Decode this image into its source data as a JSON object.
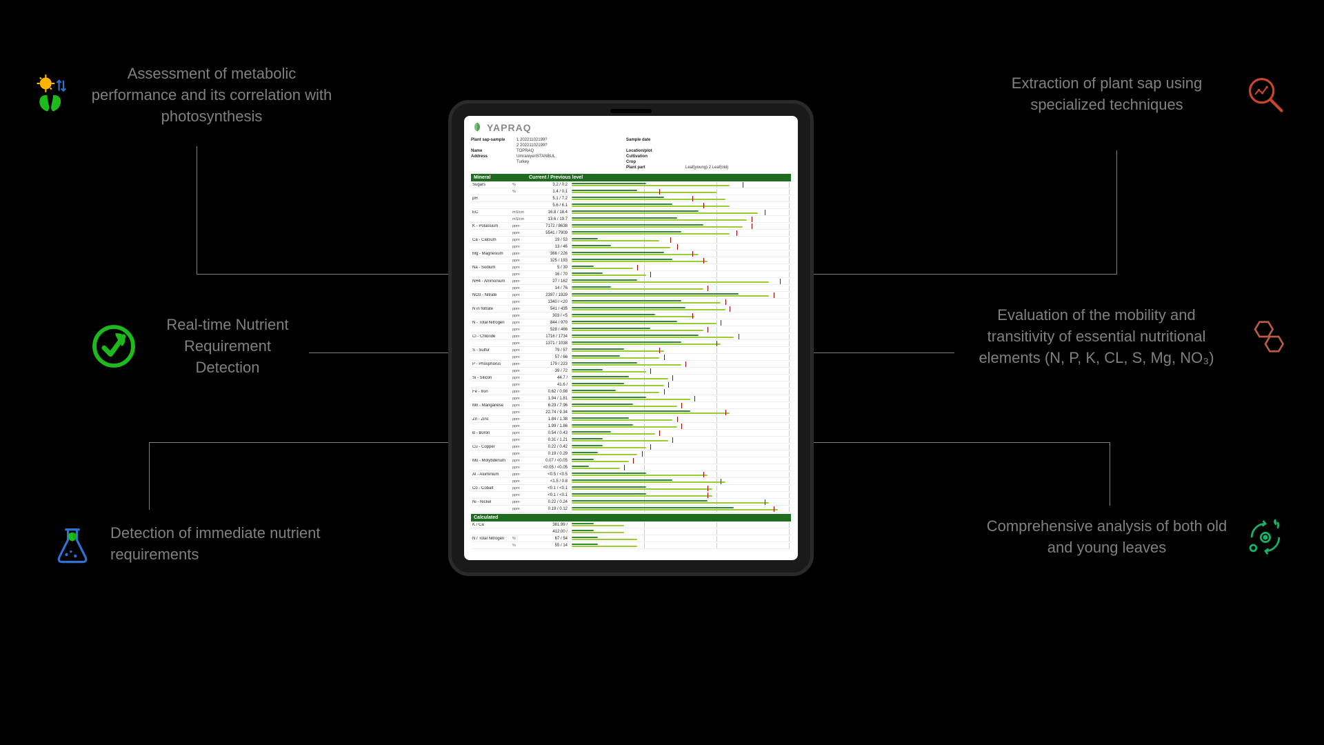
{
  "features": {
    "top_left": {
      "text": "Assessment of metabolic performance and its correlation with photosynthesis",
      "icon": "sun-leaf",
      "icon_color": "#ffb400"
    },
    "mid_left": {
      "text": "Real-time Nutrient Requirement Detection",
      "icon": "leaf-check",
      "icon_color": "#1db91d"
    },
    "bot_left": {
      "text": "Detection of immediate nutrient requirements",
      "icon": "flask-leaf",
      "icon_color": "#2e72d2"
    },
    "top_right": {
      "text": "Extraction of plant sap using specialized techniques",
      "icon": "magnifier",
      "icon_color": "#c9462d"
    },
    "mid_right": {
      "text": "Evaluation of the mobility and transitivity of essential nutritional elements (N, P, K, CL, S, Mg, NO₃)",
      "icon": "molecule",
      "icon_color": "#b85c44"
    },
    "bot_right": {
      "text": "Comprehensive analysis of both old and young leaves",
      "icon": "cycle",
      "icon_color": "#12b36a"
    }
  },
  "report": {
    "brand": "YAPRAQ",
    "header": {
      "plant_sap_sample_label": "Plant sap-sample",
      "plant_sap_sample_1": "1   20221102199?",
      "plant_sap_sample_2": "2   20221102199?",
      "sample_date_label": "Sample date",
      "sample_date": "",
      "name_label": "Name",
      "name": "TOPRAQ",
      "address_label": "Address",
      "address_1": "Umraniye/ISTANBUL",
      "address_2": "Turkey",
      "location_label": "Location/plot",
      "location": "",
      "cultivation_label": "Cultivation",
      "cultivation": "",
      "crop_label": "Crop",
      "crop": "",
      "plant_part_label": "Plant part",
      "plant_part": "Leaf(young)   2  Leaf(old)"
    },
    "section1_label": "Mineral",
    "section1_col2": "Current / Previous level",
    "section2_label": "Calculated",
    "rows": [
      {
        "label": "Sugars",
        "unit": "%",
        "value": "3.2 / 0.2",
        "bar1": 34,
        "bar2": 72,
        "marker": 78
      },
      {
        "label": "",
        "unit": "%",
        "value": "1.4 / 0.1",
        "bar1": 30,
        "bar2": 66,
        "marker": 40
      },
      {
        "label": "pH",
        "unit": "",
        "value": "5.1 / 7.2",
        "bar1": 42,
        "bar2": 70,
        "marker": 55
      },
      {
        "label": "",
        "unit": "",
        "value": "5.6 / 6.1",
        "bar1": 46,
        "bar2": 72,
        "marker": 60
      },
      {
        "label": "EC",
        "unit": "mS/cm",
        "value": "16.8 / 18.4",
        "bar1": 58,
        "bar2": 85,
        "marker": 88
      },
      {
        "label": "",
        "unit": "mS/cm",
        "value": "13.6 / 19.7",
        "bar1": 48,
        "bar2": 80,
        "marker": 82
      },
      {
        "label": "K - Potassium",
        "unit": "ppm",
        "value": "7172 / 8638",
        "bar1": 60,
        "bar2": 78,
        "marker": 82
      },
      {
        "label": "",
        "unit": "ppm",
        "value": "5541 / 7909",
        "bar1": 50,
        "bar2": 72,
        "marker": 75
      },
      {
        "label": "Ca - Calcium",
        "unit": "ppm",
        "value": "19 / 53",
        "bar1": 12,
        "bar2": 40,
        "marker": 45
      },
      {
        "label": "",
        "unit": "ppm",
        "value": "13 / 46",
        "bar1": 18,
        "bar2": 45,
        "marker": 48
      },
      {
        "label": "Mg - Magnesium",
        "unit": "ppm",
        "value": "366 / 226",
        "bar1": 42,
        "bar2": 58,
        "marker": 55
      },
      {
        "label": "",
        "unit": "ppm",
        "value": "325 / 193",
        "bar1": 46,
        "bar2": 62,
        "marker": 60
      },
      {
        "label": "Na - Sodium",
        "unit": "ppm",
        "value": "5 / 30",
        "bar1": 10,
        "bar2": 28,
        "marker": 30
      },
      {
        "label": "",
        "unit": "ppm",
        "value": "16 / 70",
        "bar1": 14,
        "bar2": 34,
        "marker": 36
      },
      {
        "label": "NH4 - Ammonium",
        "unit": "ppm",
        "value": "27 / 162",
        "bar1": 30,
        "bar2": 90,
        "marker": 95
      },
      {
        "label": "",
        "unit": "ppm",
        "value": "14 / 76",
        "bar1": 18,
        "bar2": 60,
        "marker": 62
      },
      {
        "label": "NO3 - Nitrate",
        "unit": "ppm",
        "value": "2397 / 1929",
        "bar1": 76,
        "bar2": 90,
        "marker": 92
      },
      {
        "label": "",
        "unit": "ppm",
        "value": "1340 / <20",
        "bar1": 50,
        "bar2": 68,
        "marker": 70
      },
      {
        "label": "N in Nitrate",
        "unit": "ppm",
        "value": "541 / 435",
        "bar1": 52,
        "bar2": 70,
        "marker": 72
      },
      {
        "label": "",
        "unit": "ppm",
        "value": "303 / <5",
        "bar1": 38,
        "bar2": 56,
        "marker": 55
      },
      {
        "label": "N - Total Nitrogen",
        "unit": "ppm",
        "value": "844 / 970",
        "bar1": 48,
        "bar2": 66,
        "marker": 68
      },
      {
        "label": "",
        "unit": "ppm",
        "value": "528 / 466",
        "bar1": 36,
        "bar2": 60,
        "marker": 62
      },
      {
        "label": "Cl - Chloride",
        "unit": "ppm",
        "value": "1716 / 1734",
        "bar1": 58,
        "bar2": 74,
        "marker": 76
      },
      {
        "label": "",
        "unit": "ppm",
        "value": "1371 / 1038",
        "bar1": 50,
        "bar2": 68,
        "marker": 66
      },
      {
        "label": "S - Sulfur",
        "unit": "ppm",
        "value": "79 / 57",
        "bar1": 24,
        "bar2": 42,
        "marker": 40
      },
      {
        "label": "",
        "unit": "ppm",
        "value": "57 / 66",
        "bar1": 22,
        "bar2": 40,
        "marker": 42
      },
      {
        "label": "P - Phosphorus",
        "unit": "ppm",
        "value": "179 / 223",
        "bar1": 30,
        "bar2": 50,
        "marker": 52
      },
      {
        "label": "",
        "unit": "ppm",
        "value": "39 / 72",
        "bar1": 14,
        "bar2": 34,
        "marker": 36
      },
      {
        "label": "Si - Silicon",
        "unit": "ppm",
        "value": "44.7 /",
        "bar1": 26,
        "bar2": 44,
        "marker": 46
      },
      {
        "label": "",
        "unit": "ppm",
        "value": "41.6 /",
        "bar1": 24,
        "bar2": 42,
        "marker": 44
      },
      {
        "label": "Fe - Iron",
        "unit": "ppm",
        "value": "0.62 / 0.98",
        "bar1": 20,
        "bar2": 40,
        "marker": 42
      },
      {
        "label": "",
        "unit": "ppm",
        "value": "1.94 / 1.81",
        "bar1": 34,
        "bar2": 54,
        "marker": 56
      },
      {
        "label": "Mn - Manganese",
        "unit": "ppm",
        "value": "6.23 / 7.96",
        "bar1": 28,
        "bar2": 48,
        "marker": 50
      },
      {
        "label": "",
        "unit": "ppm",
        "value": "22.74 / 9.34",
        "bar1": 54,
        "bar2": 72,
        "marker": 70
      },
      {
        "label": "Zn - Zinc",
        "unit": "ppm",
        "value": "1.84 / 1.38",
        "bar1": 26,
        "bar2": 46,
        "marker": 48
      },
      {
        "label": "",
        "unit": "ppm",
        "value": "1.99 / 1.86",
        "bar1": 28,
        "bar2": 48,
        "marker": 50
      },
      {
        "label": "B - Boron",
        "unit": "ppm",
        "value": "0.54 / 0.43",
        "bar1": 18,
        "bar2": 38,
        "marker": 40
      },
      {
        "label": "",
        "unit": "ppm",
        "value": "0.31 / 1.21",
        "bar1": 14,
        "bar2": 44,
        "marker": 46
      },
      {
        "label": "Cu - Copper",
        "unit": "ppm",
        "value": "0.22 / 0.42",
        "bar1": 14,
        "bar2": 34,
        "marker": 36
      },
      {
        "label": "",
        "unit": "ppm",
        "value": "0.19 / 0.29",
        "bar1": 12,
        "bar2": 30,
        "marker": 32
      },
      {
        "label": "Mo - Molybdenum",
        "unit": "ppm",
        "value": "0.07 / <0.05",
        "bar1": 10,
        "bar2": 26,
        "marker": 28
      },
      {
        "label": "",
        "unit": "ppm",
        "value": "<0.05 / <0.05",
        "bar1": 8,
        "bar2": 22,
        "marker": 24
      },
      {
        "label": "Al - Aluminium",
        "unit": "ppm",
        "value": "<0.5 / <0.5",
        "bar1": 34,
        "bar2": 62,
        "marker": 60
      },
      {
        "label": "",
        "unit": "ppm",
        "value": "<1.5 / 0.8",
        "bar1": 46,
        "bar2": 70,
        "marker": 68
      },
      {
        "label": "Co - Cobalt",
        "unit": "ppm",
        "value": "<0.1 / <0.1",
        "bar1": 34,
        "bar2": 64,
        "marker": 62
      },
      {
        "label": "",
        "unit": "ppm",
        "value": "<0.1 / <0.1",
        "bar1": 34,
        "bar2": 64,
        "marker": 62
      },
      {
        "label": "Ni - Nickel",
        "unit": "ppm",
        "value": "0.22 / 0.24",
        "bar1": 62,
        "bar2": 90,
        "marker": 88
      },
      {
        "label": "",
        "unit": "ppm",
        "value": "0.19 / 0.12",
        "bar1": 74,
        "bar2": 94,
        "marker": 92
      }
    ],
    "calc_rows": [
      {
        "label": "K / Ca",
        "unit": "",
        "value": "381.99 /",
        "bar1": 10,
        "bar2": 24
      },
      {
        "label": "",
        "unit": "",
        "value": "412.00 /",
        "bar1": 10,
        "bar2": 24
      },
      {
        "label": "N / Total Nitrogen",
        "unit": "%",
        "value": "67 / 54",
        "bar1": 12,
        "bar2": 30
      },
      {
        "label": "",
        "unit": "%",
        "value": "55 / 14",
        "bar1": 12,
        "bar2": 30
      }
    ]
  },
  "colors": {
    "bg": "#000000",
    "text": "#808080",
    "connector": "#808080",
    "report_header_bar": "#1f6b1f",
    "bar_dark_green": "#2d8b2d",
    "bar_olive": "#9acd32",
    "marker_red": "#a00000"
  }
}
